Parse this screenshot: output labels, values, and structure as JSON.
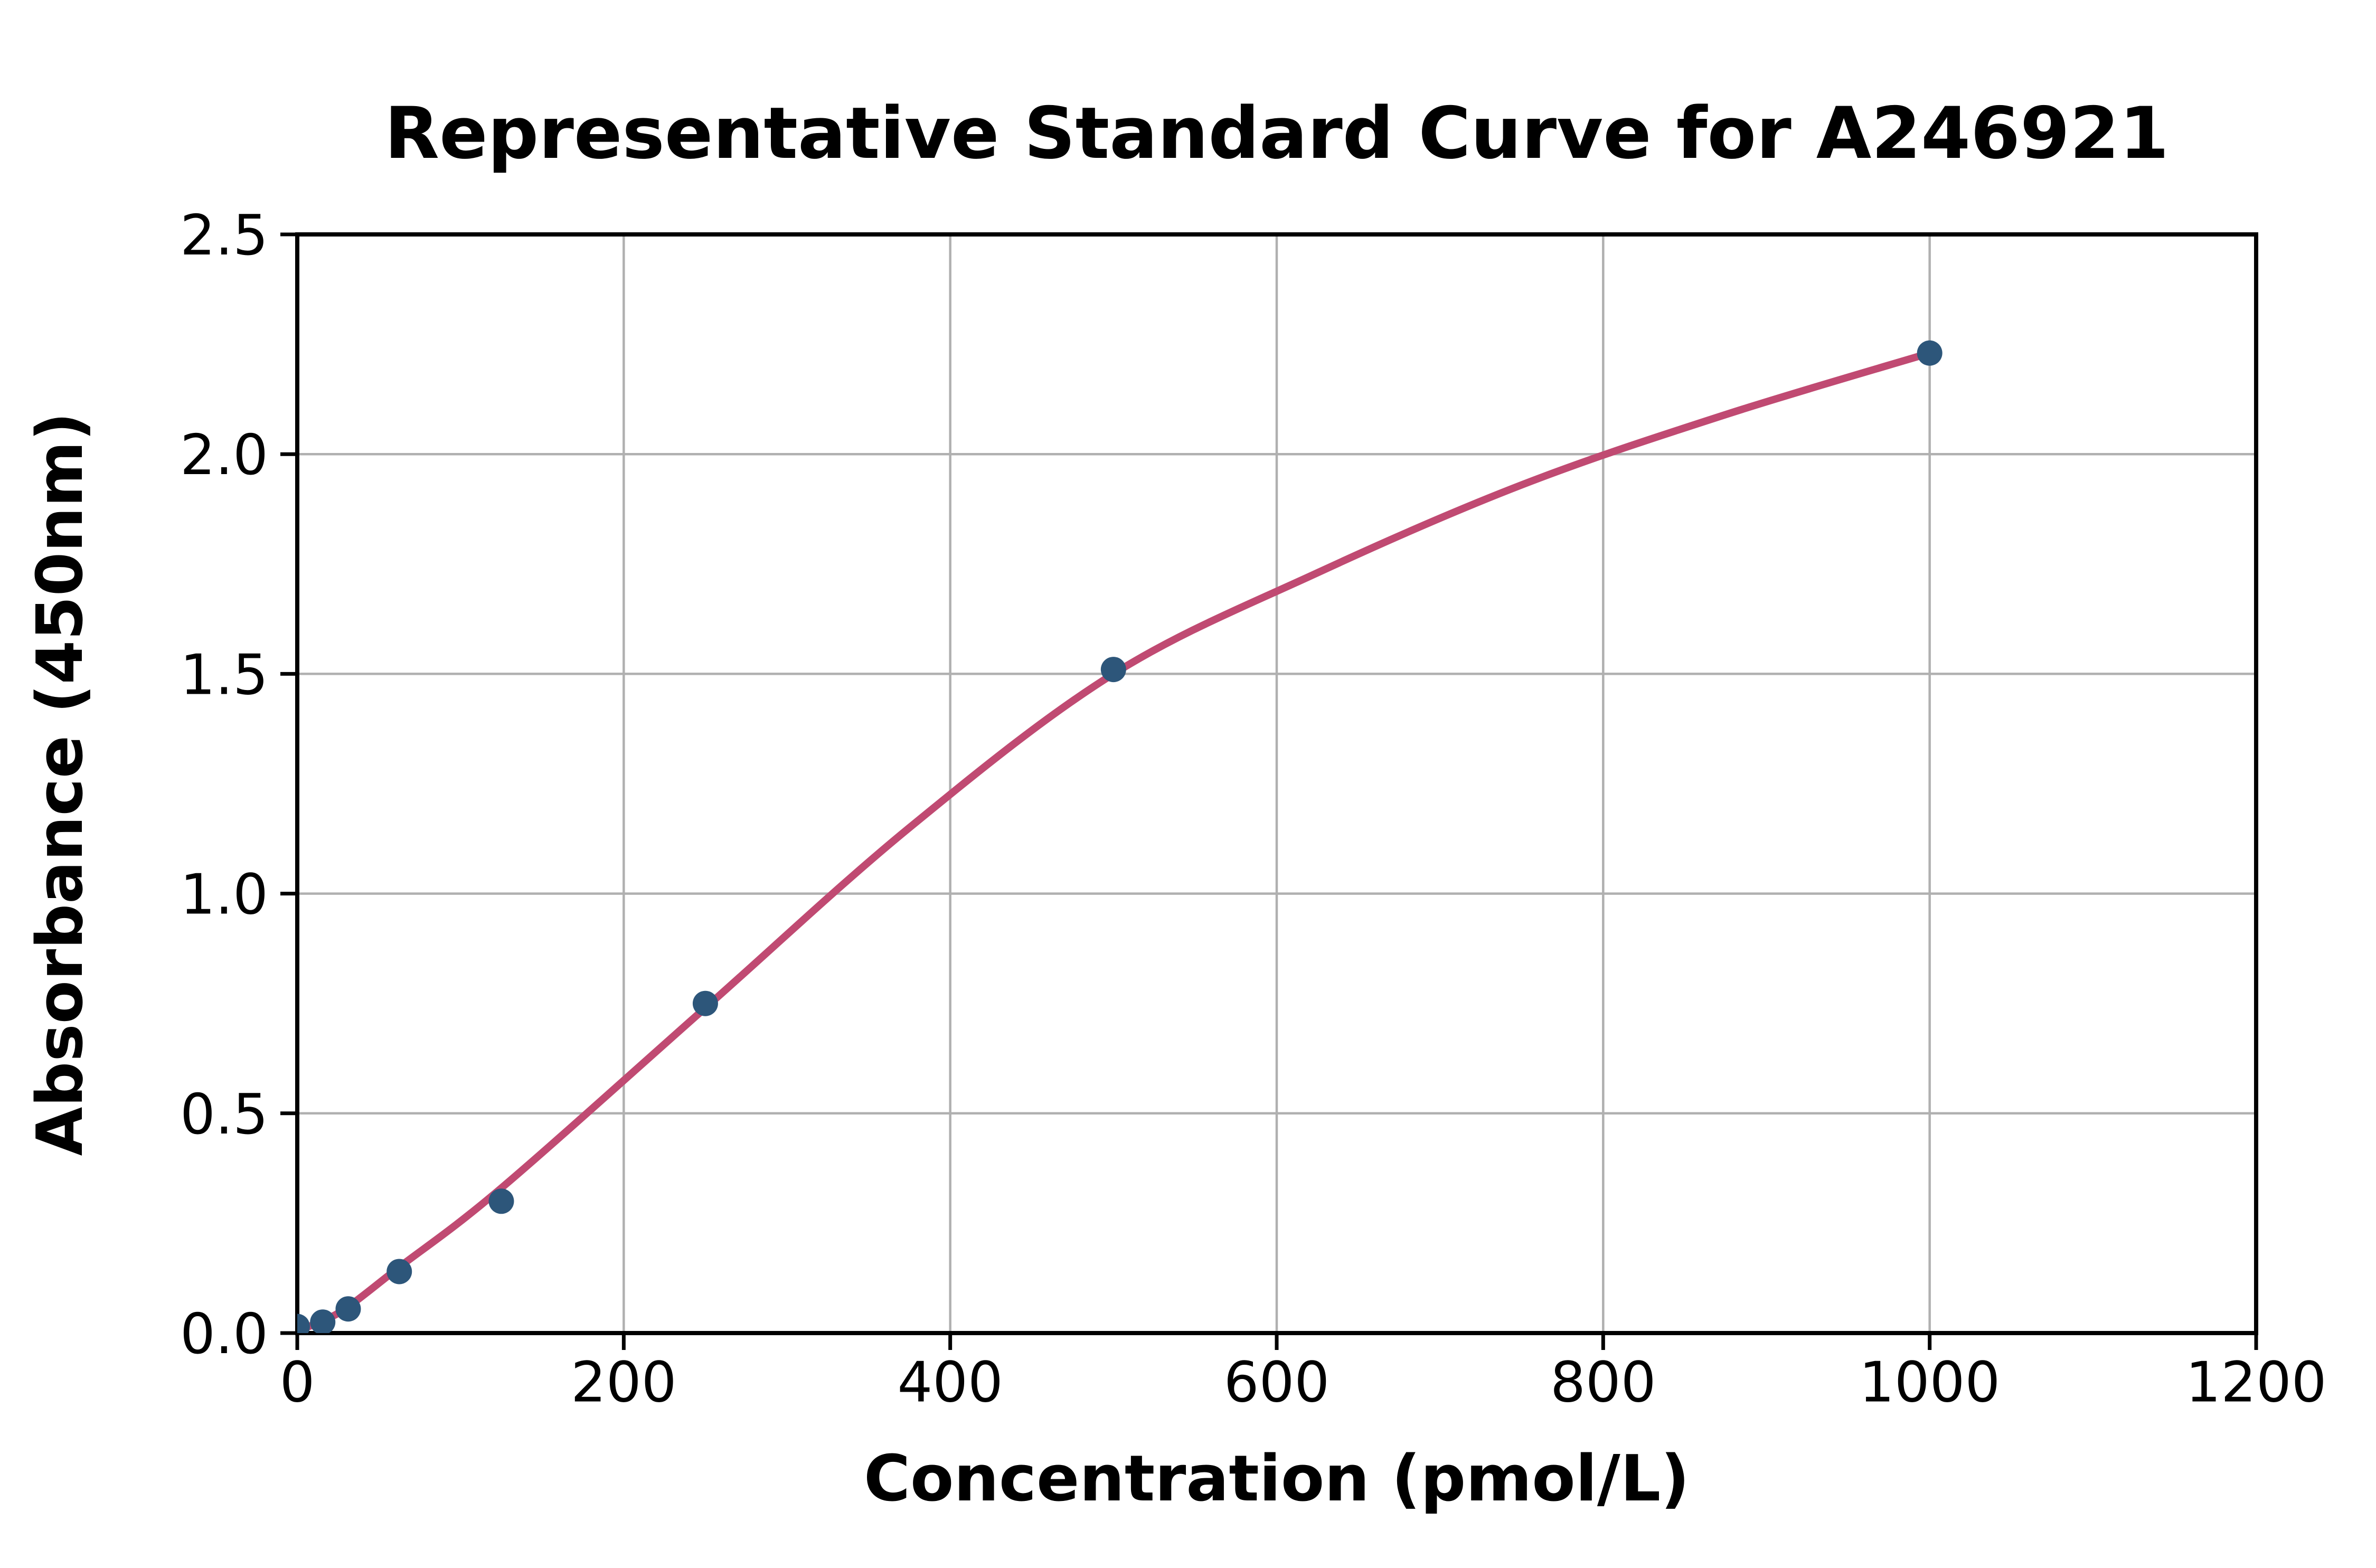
{
  "chart_data": {
    "type": "scatter",
    "title": "Representative Standard Curve for A246921",
    "xlabel": "Concentration (pmol/L)",
    "ylabel": "Absorbance (450nm)",
    "xlim": [
      0,
      1200
    ],
    "ylim": [
      0.0,
      2.5
    ],
    "xticks": [
      0,
      200,
      400,
      600,
      800,
      1000,
      1200
    ],
    "xtick_labels": [
      "0",
      "200",
      "400",
      "600",
      "800",
      "1000",
      "1200"
    ],
    "yticks": [
      0,
      0.5,
      1.0,
      1.5,
      2.0,
      2.5
    ],
    "ytick_labels": [
      "0.0",
      "0.5",
      "1.0",
      "1.5",
      "2.0",
      "2.5"
    ],
    "grid": true,
    "legend": "none",
    "series": [
      {
        "name": "standard-points",
        "type": "scatter",
        "x": [
          0,
          15.6,
          31.2,
          62.5,
          125,
          250,
          500,
          1000
        ],
        "y": [
          0.015,
          0.025,
          0.055,
          0.14,
          0.3,
          0.75,
          1.51,
          2.23
        ]
      },
      {
        "name": "fitted-curve",
        "type": "line",
        "x": [
          0,
          15.6,
          31.2,
          62.5,
          125,
          250,
          375,
          500,
          625,
          750,
          875,
          1000
        ],
        "y": [
          0.005,
          0.028,
          0.06,
          0.15,
          0.33,
          0.74,
          1.15,
          1.5,
          1.73,
          1.93,
          2.09,
          2.23
        ]
      }
    ],
    "colors": {
      "point_color": "#2d567a",
      "curve_color": "#c04a72",
      "grid_color": "#b0b0b0",
      "axis_color": "#000000",
      "background": "#ffffff"
    }
  }
}
